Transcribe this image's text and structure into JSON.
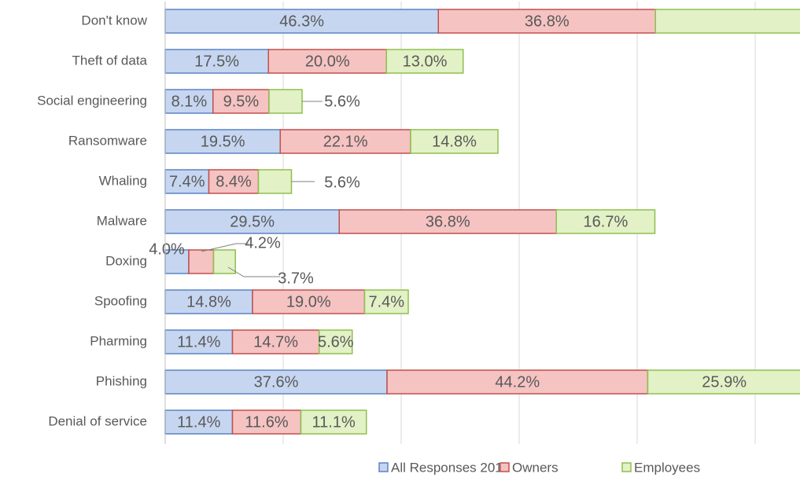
{
  "chart_data": {
    "type": "stacked_barh",
    "categories": [
      "Don't know",
      "Theft of data",
      "Social engineering",
      "Ransomware",
      "Whaling",
      "Malware",
      "Doxing",
      "Spoofing",
      "Pharming",
      "Phishing",
      "Denial of service"
    ],
    "series": [
      {
        "name": "All Responses 2017",
        "color": "#c6d6f1",
        "edge": "#5b84c4",
        "values": [
          46.3,
          17.5,
          8.1,
          19.5,
          7.4,
          29.5,
          4.0,
          14.8,
          11.4,
          37.6,
          11.4
        ],
        "value_labels": [
          "46.3%",
          "17.5%",
          "8.1%",
          "19.5%",
          "7.4%",
          "29.5%",
          "4.0%",
          "14.8%",
          "11.4%",
          "37.6%",
          "11.4%"
        ]
      },
      {
        "name": "Owners",
        "color": "#f5c3c2",
        "edge": "#c0504d",
        "values": [
          36.8,
          20.0,
          9.5,
          22.1,
          8.4,
          36.8,
          4.2,
          19.0,
          14.7,
          44.2,
          11.6
        ],
        "value_labels": [
          "36.8%",
          "20.0%",
          "9.5%",
          "22.1%",
          "8.4%",
          "36.8%",
          "4.2%",
          "19.0%",
          "14.7%",
          "44.2%",
          "11.6%"
        ]
      },
      {
        "name": "Employees",
        "color": "#e2f1c6",
        "edge": "#8fbf4f",
        "values": [
          25.0,
          13.0,
          5.6,
          14.8,
          5.6,
          16.7,
          3.7,
          7.4,
          5.6,
          25.9,
          11.1
        ],
        "value_labels": [
          null,
          "13.0%",
          "5.6%",
          "14.8%",
          "5.6%",
          "16.7%",
          "3.7%",
          "7.4%",
          "5.6%",
          "25.9%",
          "11.1%"
        ]
      }
    ],
    "xlim": [
      0,
      107.6
    ],
    "xticks": [
      0,
      20,
      40,
      60,
      80,
      100
    ],
    "grid": true,
    "legend": "bottom"
  }
}
